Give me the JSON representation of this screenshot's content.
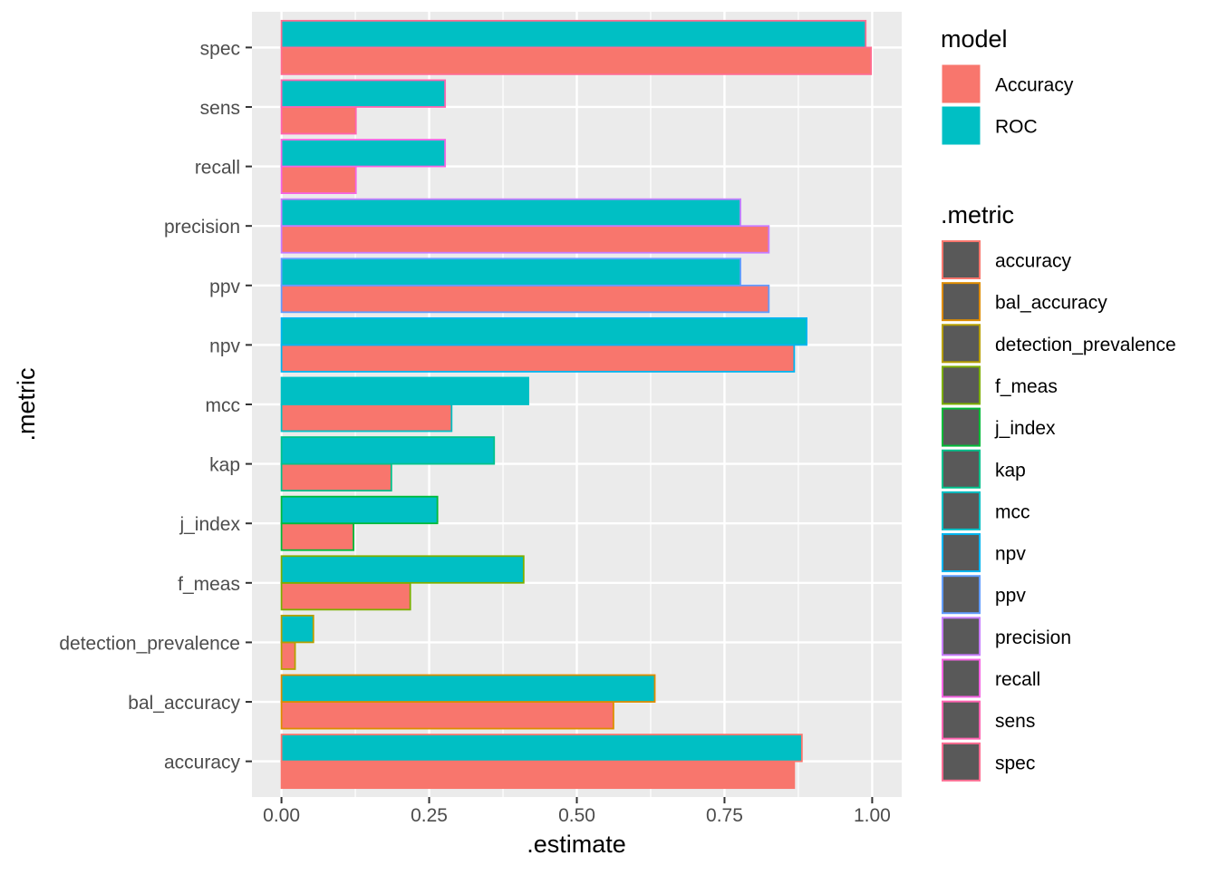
{
  "chart_data": {
    "type": "bar",
    "orientation": "horizontal",
    "xlabel": ".estimate",
    "ylabel": ".metric",
    "xlim": [
      -0.05,
      1.05
    ],
    "x_ticks": [
      0.0,
      0.25,
      0.5,
      0.75,
      1.0
    ],
    "x_tick_labels": [
      "0.00",
      "0.25",
      "0.50",
      "0.75",
      "1.00"
    ],
    "grid": true,
    "categories": [
      "accuracy",
      "bal_accuracy",
      "detection_prevalence",
      "f_meas",
      "j_index",
      "kap",
      "mcc",
      "npv",
      "ppv",
      "precision",
      "recall",
      "sens",
      "spec"
    ],
    "series": [
      {
        "name": "Accuracy",
        "fill": "#F8766D",
        "values": [
          0.868,
          0.562,
          0.023,
          0.218,
          0.122,
          0.186,
          0.288,
          0.868,
          0.825,
          0.825,
          0.126,
          0.126,
          0.998
        ]
      },
      {
        "name": "ROC",
        "fill": "#00BFC4",
        "values": [
          0.881,
          0.632,
          0.054,
          0.41,
          0.264,
          0.36,
          0.418,
          0.889,
          0.777,
          0.777,
          0.277,
          0.277,
          0.989
        ]
      }
    ],
    "outline_colors": [
      "#F8766D",
      "#DE8C00",
      "#B79F00",
      "#7CAE00",
      "#00BA38",
      "#00C08B",
      "#00BFC4",
      "#00B4F0",
      "#619CFF",
      "#C77CFF",
      "#F564E3",
      "#FF64B0",
      "#FF6C91"
    ],
    "legends": [
      {
        "title": "model",
        "items": [
          "Accuracy",
          "ROC"
        ]
      },
      {
        "title": ".metric",
        "items": [
          "accuracy",
          "bal_accuracy",
          "detection_prevalence",
          "f_meas",
          "j_index",
          "kap",
          "mcc",
          "npv",
          "ppv",
          "precision",
          "recall",
          "sens",
          "spec"
        ]
      }
    ],
    "legend_placement": "right",
    "legend_key_fill": "#595959",
    "panel_background": "#EBEBEB",
    "grid_color": "#FFFFFF"
  }
}
